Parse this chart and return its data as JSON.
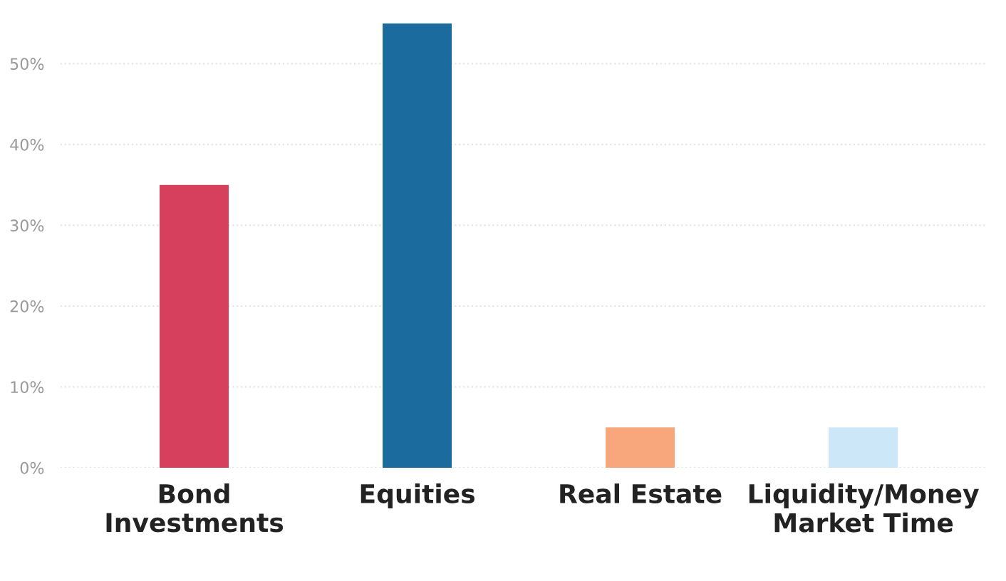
{
  "chart_data": {
    "type": "bar",
    "categories": [
      "Bond\nInvestments",
      "Equities",
      "Real Estate",
      "Liquidity/Money\nMarket Time"
    ],
    "values": [
      35,
      55,
      5,
      5
    ],
    "colors": [
      "#d6405c",
      "#1c6b9e",
      "#f8a67c",
      "#cce8f8"
    ],
    "ylim": [
      0,
      55
    ],
    "yticks": [
      {
        "value": 0,
        "label": "0%"
      },
      {
        "value": 10,
        "label": "10%"
      },
      {
        "value": 20,
        "label": "20%"
      },
      {
        "value": 30,
        "label": "30%"
      },
      {
        "value": 40,
        "label": "40%"
      },
      {
        "value": 50,
        "label": "50%"
      }
    ],
    "grid": "y"
  }
}
